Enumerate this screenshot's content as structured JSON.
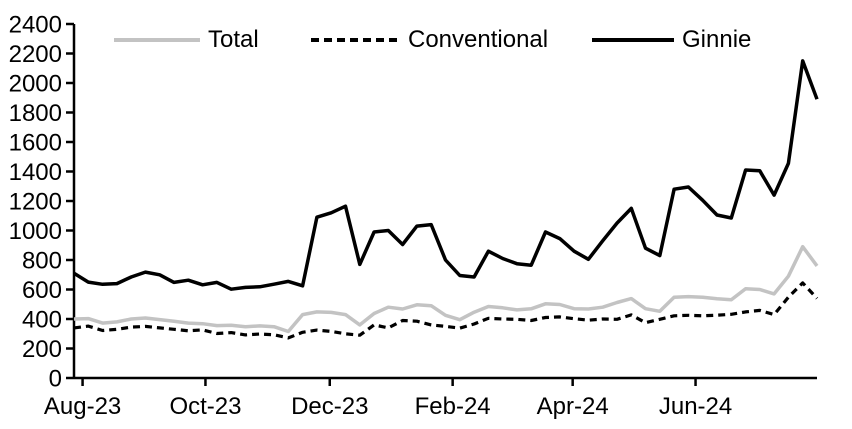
{
  "chart_data": {
    "type": "line",
    "title": "",
    "xlabel": "",
    "ylabel": "",
    "frequency": "weekly",
    "grid": false,
    "legend_position": "top-inside",
    "y_axis": {
      "min": 0,
      "max": 2400,
      "step": 200
    },
    "y_tick_labels": [
      "0",
      "200",
      "400",
      "600",
      "800",
      "1000",
      "1200",
      "1400",
      "1600",
      "1800",
      "2000",
      "2200",
      "2400"
    ],
    "x_ticks": [
      {
        "label": "Aug-23",
        "week": 0.6
      },
      {
        "label": "Oct-23",
        "week": 9.2
      },
      {
        "label": "Dec-23",
        "week": 17.9
      },
      {
        "label": "Feb-24",
        "week": 26.5
      },
      {
        "label": "Apr-24",
        "week": 34.9
      },
      {
        "label": "Jun-24",
        "week": 43.5
      }
    ],
    "series": [
      {
        "name": "Total",
        "color": "#c3c3c3",
        "style": "solid",
        "values": [
          400,
          403,
          372,
          380,
          400,
          407,
          396,
          385,
          372,
          368,
          355,
          358,
          348,
          353,
          348,
          315,
          430,
          448,
          445,
          430,
          360,
          437,
          480,
          468,
          496,
          490,
          425,
          395,
          446,
          485,
          476,
          462,
          469,
          503,
          498,
          470,
          468,
          480,
          512,
          538,
          470,
          452,
          548,
          552,
          548,
          537,
          530,
          605,
          600,
          570,
          690,
          890,
          760
        ]
      },
      {
        "name": "Conventional",
        "color": "#000000",
        "style": "dashed",
        "values": [
          340,
          352,
          322,
          330,
          345,
          350,
          340,
          330,
          320,
          326,
          302,
          308,
          292,
          298,
          293,
          272,
          310,
          325,
          316,
          300,
          290,
          360,
          340,
          390,
          385,
          360,
          350,
          338,
          366,
          405,
          400,
          398,
          390,
          410,
          414,
          402,
          392,
          400,
          398,
          428,
          375,
          398,
          422,
          425,
          422,
          426,
          432,
          448,
          458,
          430,
          548,
          645,
          540
        ]
      },
      {
        "name": "Ginnie",
        "color": "#000000",
        "style": "solid",
        "values": [
          710,
          650,
          635,
          640,
          685,
          718,
          700,
          648,
          663,
          632,
          648,
          602,
          614,
          618,
          636,
          655,
          625,
          1090,
          1120,
          1165,
          770,
          990,
          1000,
          905,
          1030,
          1040,
          800,
          695,
          685,
          860,
          810,
          775,
          765,
          990,
          945,
          860,
          805,
          930,
          1050,
          1150,
          880,
          830,
          1280,
          1295,
          1205,
          1105,
          1085,
          1410,
          1405,
          1240,
          1455,
          2150,
          1890
        ]
      }
    ]
  }
}
